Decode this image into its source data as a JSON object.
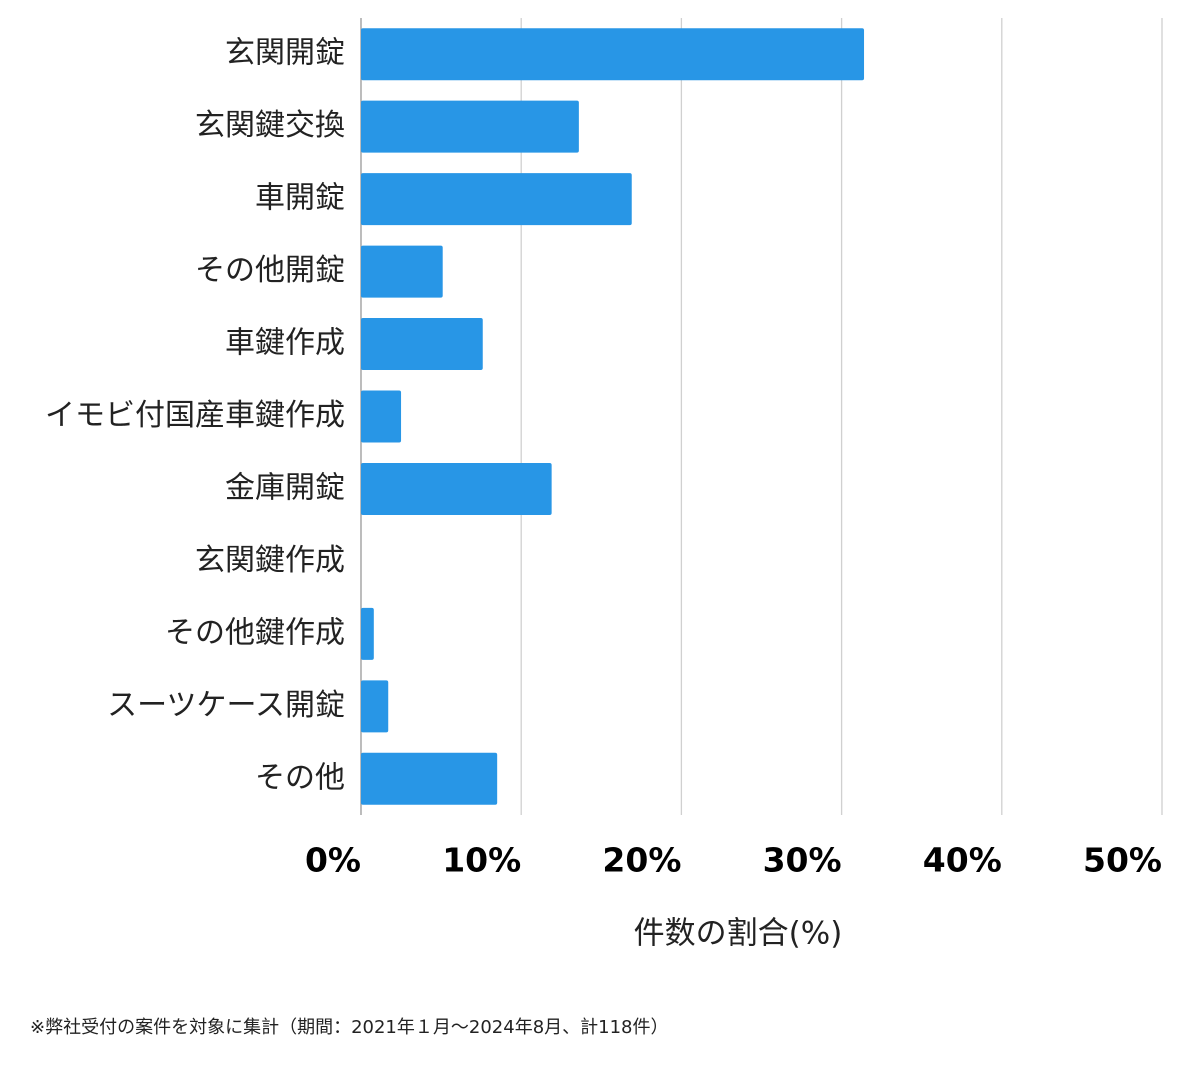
{
  "chart_data": {
    "type": "barh",
    "categories": [
      "玄関開錠",
      "玄関鍵交換",
      "車開錠",
      "その他開錠",
      "車鍵作成",
      "イモビ付国産車鍵作成",
      "金庫開錠",
      "玄関鍵作成",
      "その他鍵作成",
      "スーツケース開錠",
      "その他"
    ],
    "values": [
      31.4,
      13.6,
      16.9,
      5.1,
      7.6,
      2.5,
      11.9,
      0,
      0.8,
      1.7,
      8.5
    ],
    "color": "#2896e6",
    "xlim": [
      0,
      50
    ],
    "xticks": [
      {
        "value": 0,
        "label": "0%"
      },
      {
        "value": 10,
        "label": "10%"
      },
      {
        "value": 20,
        "label": "20%"
      },
      {
        "value": 30,
        "label": "30%"
      },
      {
        "value": 40,
        "label": "40%"
      },
      {
        "value": 50,
        "label": "50%"
      }
    ],
    "x_label": "件数の割合(%)",
    "grid": true
  },
  "footnote": "※弊社受付の案件を対象に集計（期間：2021年１月〜2024年8月、計118件）"
}
